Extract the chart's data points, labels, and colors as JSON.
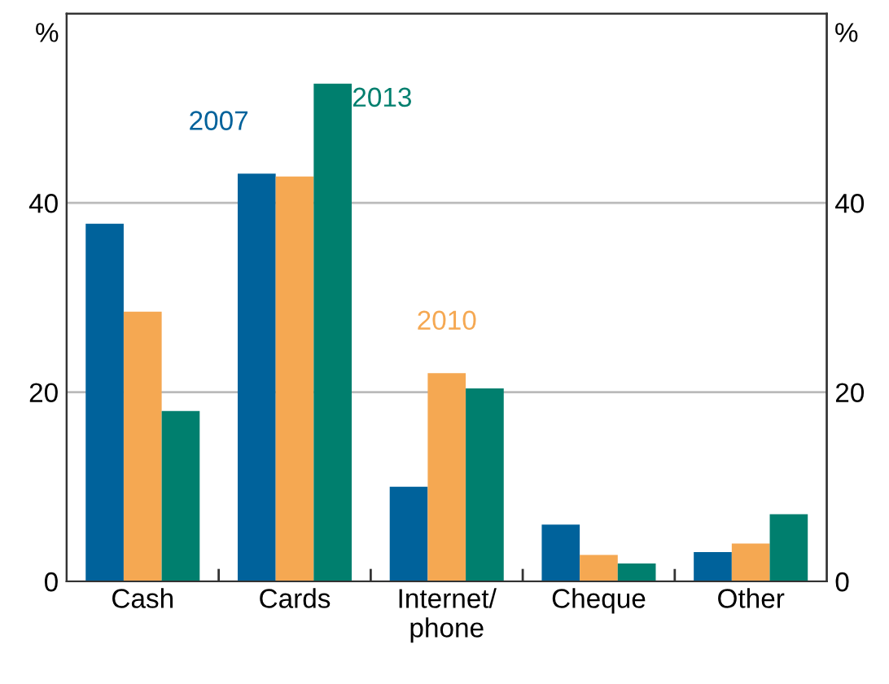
{
  "chart_data": {
    "type": "bar",
    "categories": [
      "Cash",
      "Cards",
      "Internet/\nphone",
      "Cheque",
      "Other"
    ],
    "series": [
      {
        "name": "2007",
        "color": "#00629b",
        "values": [
          37.8,
          43.1,
          10.0,
          6.0,
          3.1
        ]
      },
      {
        "name": "2010",
        "color": "#f5a852",
        "values": [
          28.5,
          42.8,
          22.0,
          2.8,
          4.0
        ]
      },
      {
        "name": "2013",
        "color": "#007f6e",
        "values": [
          18.0,
          52.6,
          20.4,
          1.9,
          7.1
        ]
      }
    ],
    "ylabel": "%",
    "y2label": "%",
    "ylim": [
      0,
      60
    ],
    "yticks": [
      0,
      20,
      40
    ],
    "y2lim": [
      0,
      60
    ],
    "y2ticks": [
      0,
      20,
      40
    ],
    "grid": "y",
    "legend": false
  }
}
